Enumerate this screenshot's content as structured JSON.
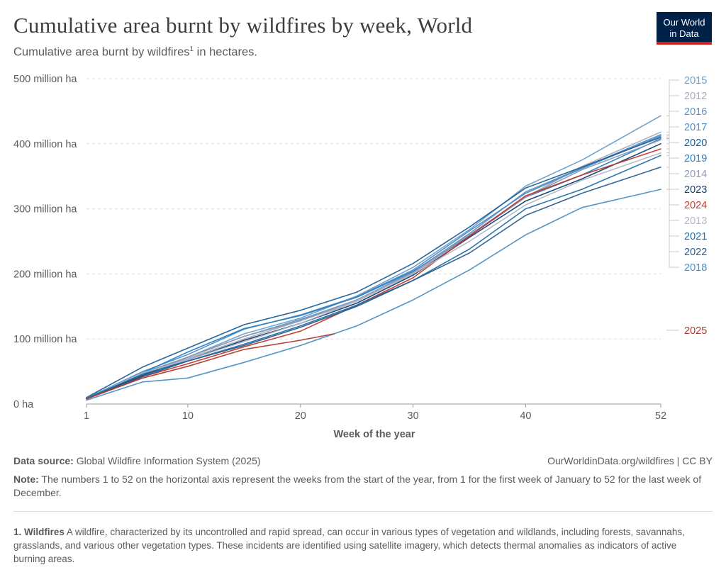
{
  "header": {
    "title": "Cumulative area burnt by wildfires by week, World",
    "subtitle": "Cumulative area burnt by wildfires",
    "subtitle_sup": "1",
    "subtitle_suffix": " in hectares.",
    "logo_line1": "Our World",
    "logo_line2": "in Data"
  },
  "footer": {
    "source_label": "Data source:",
    "source_text": " Global Wildfire Information System (2025)",
    "attribution": "OurWorldinData.org/wildfires | CC BY",
    "note_label": "Note:",
    "note_text": " The numbers 1 to 52 on the horizontal axis represent the weeks from the start of the year, from 1 for the first week of January to 52 for the last week of December.",
    "footnote_label": "1. Wildfires",
    "footnote_text": " A wildfire, characterized by its uncontrolled and rapid spread, can occur in various types of vegetation and wildlands, including forests, savannahs, grasslands, and various other vegetation types. These incidents are identified using satellite imagery, which detects thermal anomalies as indicators of active burning areas."
  },
  "chart_data": {
    "type": "line",
    "xlabel": "Week of the year",
    "ylabel": "",
    "xlim": [
      1,
      52
    ],
    "ylim": [
      0,
      500
    ],
    "x_ticks": [
      1,
      10,
      20,
      30,
      40,
      52
    ],
    "y_ticks": [
      0,
      100,
      200,
      300,
      400,
      500
    ],
    "y_tick_labels": [
      "0 ha",
      "100 million ha",
      "200 million ha",
      "300 million ha",
      "400 million ha",
      "500 million ha"
    ],
    "grid": "horizontal dashed",
    "legend": "right",
    "x": [
      1,
      6,
      10,
      15,
      20,
      25,
      30,
      35,
      40,
      45,
      52
    ],
    "series": [
      {
        "name": "2015",
        "color": "#6d9ec8",
        "values": [
          9,
          46,
          72,
          108,
          132,
          166,
          210,
          268,
          335,
          375,
          443
        ]
      },
      {
        "name": "2012",
        "color": "#a7abbc",
        "values": [
          9,
          46,
          70,
          100,
          128,
          158,
          200,
          258,
          318,
          365,
          418
        ]
      },
      {
        "name": "2016",
        "color": "#5e92c2",
        "values": [
          9,
          48,
          72,
          104,
          130,
          160,
          203,
          262,
          326,
          363,
          414
        ]
      },
      {
        "name": "2017",
        "color": "#4d8cc6",
        "values": [
          9,
          50,
          76,
          115,
          137,
          165,
          206,
          266,
          324,
          362,
          412
        ]
      },
      {
        "name": "2020",
        "color": "#1c5f97",
        "values": [
          10,
          57,
          86,
          122,
          144,
          172,
          216,
          272,
          332,
          364,
          410
        ]
      },
      {
        "name": "2019",
        "color": "#2a7fc4",
        "values": [
          9,
          48,
          80,
          116,
          136,
          164,
          204,
          258,
          318,
          352,
          408
        ]
      },
      {
        "name": "2014",
        "color": "#8f9ab3",
        "values": [
          9,
          46,
          72,
          104,
          128,
          160,
          202,
          260,
          318,
          360,
          406
        ]
      },
      {
        "name": "2023",
        "color": "#153f6e",
        "values": [
          8,
          44,
          68,
          98,
          124,
          155,
          198,
          256,
          312,
          346,
          400
        ]
      },
      {
        "name": "2024",
        "color": "#c0392b",
        "values": [
          8,
          42,
          62,
          88,
          112,
          152,
          194,
          258,
          320,
          352,
          392
        ]
      },
      {
        "name": "2013",
        "color": "#b3b8c7",
        "values": [
          9,
          48,
          68,
          96,
          124,
          158,
          200,
          250,
          306,
          344,
          386
        ]
      },
      {
        "name": "2021",
        "color": "#1f6ea8",
        "values": [
          9,
          46,
          66,
          92,
          120,
          152,
          190,
          238,
          300,
          330,
          382
        ]
      },
      {
        "name": "2022",
        "color": "#2b5d8c",
        "values": [
          8,
          42,
          66,
          90,
          118,
          150,
          190,
          232,
          290,
          324,
          364
        ]
      },
      {
        "name": "2018",
        "color": "#4b8fc2",
        "values": [
          6,
          34,
          40,
          64,
          90,
          120,
          160,
          206,
          260,
          302,
          330
        ]
      },
      {
        "name": "2025",
        "color": "#b03a2a",
        "values": [
          8,
          40,
          58,
          84,
          98,
          108
        ],
        "x": [
          1,
          6,
          10,
          15,
          20,
          23
        ]
      }
    ]
  }
}
